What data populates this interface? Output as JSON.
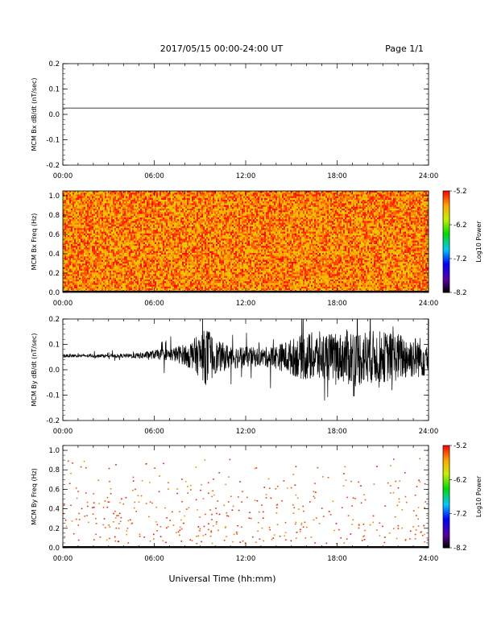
{
  "header": {
    "title": "2017/05/15  00:00-24:00 UT",
    "page": "Page 1/1"
  },
  "xaxis": {
    "label": "Universal Time (hh:mm)",
    "ticks": [
      "00:00",
      "06:00",
      "12:00",
      "18:00",
      "24:00"
    ],
    "range_hours": [
      0,
      24
    ]
  },
  "colorbar": {
    "label": "Log10 Power",
    "ticks": [
      "-5.2",
      "-6.2",
      "-7.2",
      "-8.2"
    ],
    "range": [
      -8.2,
      -5.2
    ]
  },
  "colors": {
    "axis": "#000000",
    "trace": "#000000",
    "background": "#ffffff"
  },
  "chart_data": [
    {
      "type": "line",
      "ylabel": "MCM Bx dB/dt (nT/sec)",
      "yticks": [
        "0.2",
        "0.1",
        "0.0",
        "-0.1",
        "-0.2"
      ],
      "ylim": [
        -0.2,
        0.2
      ],
      "x": [
        0,
        24
      ],
      "y": [
        0.025,
        0.025
      ]
    },
    {
      "type": "heatmap",
      "ylabel": "MCM Bx Freq (Hz)",
      "yticks": [
        "1.0",
        "0.8",
        "0.6",
        "0.4",
        "0.2",
        "0.0"
      ],
      "ylim": [
        0,
        1.05
      ],
      "typical_power": [
        -5.9,
        -5.2
      ],
      "fill": "dense"
    },
    {
      "type": "line",
      "ylabel": "MCM By dB/dt (nT/sec)",
      "yticks": [
        "0.2",
        "0.1",
        "0.0",
        "-0.1",
        "-0.2"
      ],
      "ylim": [
        -0.2,
        0.2
      ],
      "envelope": {
        "x": [
          0,
          2,
          4,
          5,
          6,
          7,
          8,
          9,
          9.5,
          10,
          11,
          12,
          13,
          14,
          15,
          16,
          17,
          18,
          19,
          20,
          21,
          22,
          23,
          24
        ],
        "baseline": [
          0.055,
          0.055,
          0.055,
          0.055,
          0.06,
          0.06,
          0.06,
          0.055,
          0.05,
          0.05,
          0.05,
          0.05,
          0.05,
          0.05,
          0.05,
          0.05,
          0.05,
          0.05,
          0.05,
          0.05,
          0.05,
          0.05,
          0.05,
          0.05
        ],
        "amplitude": [
          0.01,
          0.01,
          0.012,
          0.02,
          0.03,
          0.04,
          0.07,
          0.14,
          0.2,
          0.11,
          0.08,
          0.07,
          0.06,
          0.08,
          0.12,
          0.16,
          0.17,
          0.15,
          0.2,
          0.18,
          0.17,
          0.16,
          0.14,
          0.13
        ]
      }
    },
    {
      "type": "heatmap",
      "ylabel": "MCM By Freq (Hz)",
      "yticks": [
        "1.0",
        "0.8",
        "0.6",
        "0.4",
        "0.2",
        "0.0"
      ],
      "ylim": [
        0,
        1.05
      ],
      "typical_power": [
        -5.6,
        -5.2
      ],
      "fill": "sparse"
    }
  ]
}
